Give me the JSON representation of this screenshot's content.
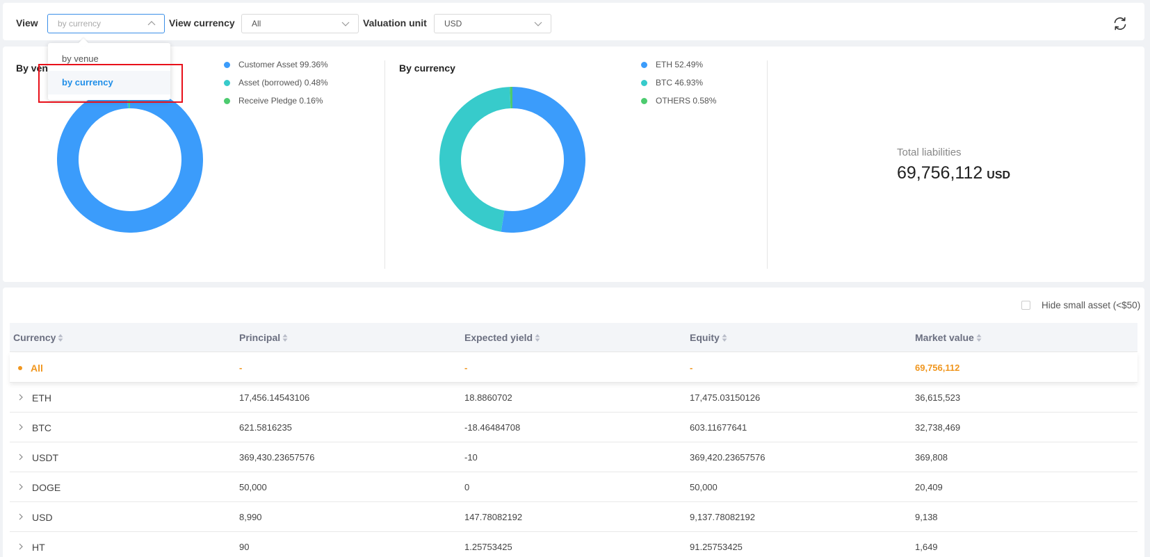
{
  "toolbar": {
    "view_label": "View",
    "view_value": "by currency",
    "view_currency_label": "View currency",
    "view_currency_value": "All",
    "valuation_label": "Valuation unit",
    "valuation_value": "USD"
  },
  "dropdown": {
    "options": [
      "by venue",
      "by currency"
    ],
    "selected": "by currency"
  },
  "summary": {
    "by_venue": {
      "title": "By venue",
      "legend": [
        {
          "label": "Customer Asset 99.36%",
          "color": "#3b9cfb"
        },
        {
          "label": "Asset (borrowed) 0.48%",
          "color": "#37cbcb"
        },
        {
          "label": "Receive Pledge 0.16%",
          "color": "#4ccb6f"
        }
      ]
    },
    "by_currency": {
      "title": "By currency",
      "legend": [
        {
          "label": "ETH 52.49%",
          "color": "#3b9cfb"
        },
        {
          "label": "BTC 46.93%",
          "color": "#37cbcb"
        },
        {
          "label": "OTHERS 0.58%",
          "color": "#4ccb6f"
        }
      ]
    },
    "total_label": "Total liabilities",
    "total_value": "69,756,112",
    "total_unit": "USD"
  },
  "chart_data": [
    {
      "type": "pie",
      "title": "By venue",
      "categories": [
        "Customer Asset",
        "Asset (borrowed)",
        "Receive Pledge"
      ],
      "values": [
        99.36,
        0.48,
        0.16
      ],
      "colors": [
        "#3b9cfb",
        "#37cbcb",
        "#4ccb6f"
      ]
    },
    {
      "type": "pie",
      "title": "By currency",
      "categories": [
        "ETH",
        "BTC",
        "OTHERS"
      ],
      "values": [
        52.49,
        46.93,
        0.58
      ],
      "colors": [
        "#3b9cfb",
        "#37cbcb",
        "#4ccb6f"
      ]
    }
  ],
  "table": {
    "hide_small_label": "Hide small asset (<$50)",
    "columns": [
      "Currency",
      "Principal",
      "Expected yield",
      "Equity",
      "Market value"
    ],
    "all_row": {
      "currency": "All",
      "principal": "-",
      "expected_yield": "-",
      "equity": "-",
      "market_value": "69,756,112"
    },
    "rows": [
      {
        "currency": "ETH",
        "principal": "17,456.14543106",
        "expected_yield": "18.8860702",
        "equity": "17,475.03150126",
        "market_value": "36,615,523"
      },
      {
        "currency": "BTC",
        "principal": "621.5816235",
        "expected_yield": "-18.46484708",
        "equity": "603.11677641",
        "market_value": "32,738,469"
      },
      {
        "currency": "USDT",
        "principal": "369,430.23657576",
        "expected_yield": "-10",
        "equity": "369,420.23657576",
        "market_value": "369,808"
      },
      {
        "currency": "DOGE",
        "principal": "50,000",
        "expected_yield": "0",
        "equity": "50,000",
        "market_value": "20,409"
      },
      {
        "currency": "USD",
        "principal": "8,990",
        "expected_yield": "147.78082192",
        "equity": "9,137.78082192",
        "market_value": "9,138"
      },
      {
        "currency": "HT",
        "principal": "90",
        "expected_yield": "1.25753425",
        "equity": "91.25753425",
        "market_value": "1,649"
      }
    ]
  }
}
